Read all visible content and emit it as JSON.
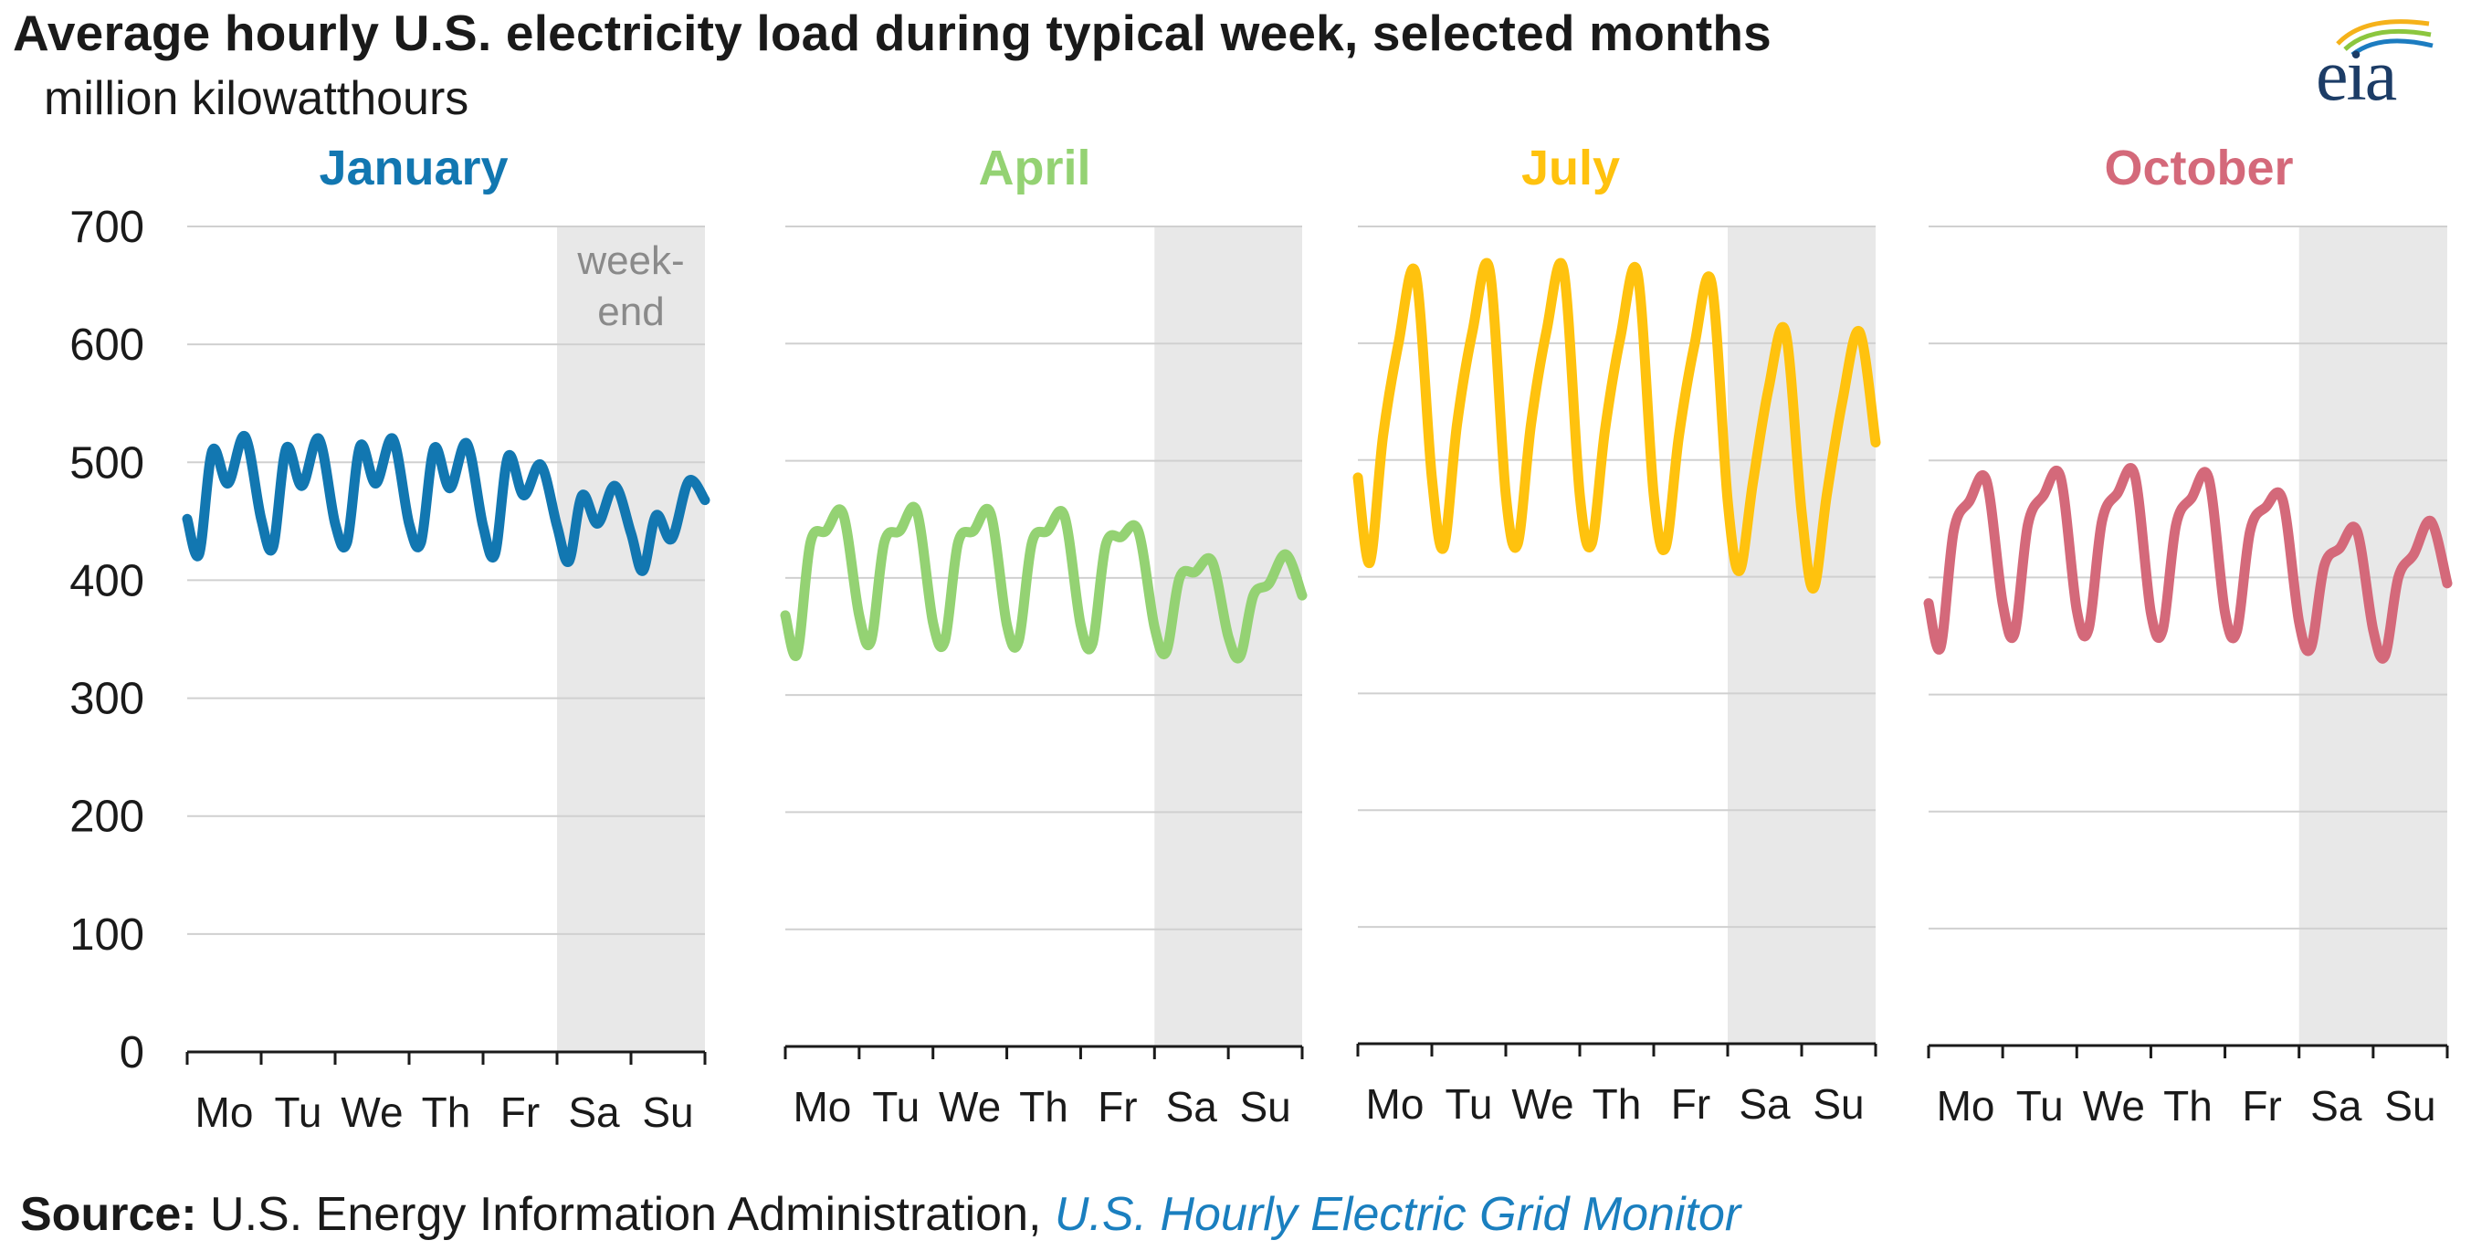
{
  "header": {
    "title": "Average hourly U.S. electricity load during typical week, selected months",
    "subtitle": "million kilowatthours",
    "logo_text": "eia"
  },
  "source": {
    "label": "Source:",
    "text": " U.S. Energy Information Administration, ",
    "link_text": "U.S. Hourly Electric Grid Monitor"
  },
  "chart_data": {
    "type": "line",
    "unit": "million kilowatthours",
    "y_ticks": [
      0,
      100,
      200,
      300,
      400,
      500,
      600,
      700
    ],
    "ylim": [
      0,
      700
    ],
    "x_ticks": [
      "Mo",
      "Tu",
      "We",
      "Th",
      "Fr",
      "Sa",
      "Su"
    ],
    "weekend_label": "week-\nend",
    "grid": true,
    "panels": [
      {
        "name": "January",
        "color": "#1277b1",
        "daily": [
          {
            "min": 422,
            "peak_am": 510,
            "mid": 482,
            "peak_pm": 522,
            "end": 452
          },
          {
            "min": 428,
            "peak_am": 512,
            "mid": 480,
            "peak_pm": 520,
            "end": 448
          },
          {
            "min": 432,
            "peak_am": 514,
            "mid": 482,
            "peak_pm": 520,
            "end": 448
          },
          {
            "min": 432,
            "peak_am": 512,
            "mid": 478,
            "peak_pm": 516,
            "end": 446
          },
          {
            "min": 422,
            "peak_am": 505,
            "mid": 472,
            "peak_pm": 498,
            "end": 446
          },
          {
            "min": 416,
            "peak_am": 472,
            "mid": 448,
            "peak_pm": 480,
            "end": 440
          },
          {
            "min": 408,
            "peak_am": 455,
            "mid": 435,
            "peak_pm": 484,
            "end": 468
          }
        ]
      },
      {
        "name": "April",
        "color": "#94d273",
        "daily": [
          {
            "min": 335,
            "peak_am": 430,
            "mid": 440,
            "peak_pm": 455,
            "end": 368
          },
          {
            "min": 346,
            "peak_am": 430,
            "mid": 440,
            "peak_pm": 457,
            "end": 362
          },
          {
            "min": 346,
            "peak_am": 430,
            "mid": 440,
            "peak_pm": 455,
            "end": 360
          },
          {
            "min": 346,
            "peak_am": 430,
            "mid": 440,
            "peak_pm": 453,
            "end": 360
          },
          {
            "min": 344,
            "peak_am": 428,
            "mid": 435,
            "peak_pm": 440,
            "end": 358
          },
          {
            "min": 337,
            "peak_am": 400,
            "mid": 405,
            "peak_pm": 414,
            "end": 350
          },
          {
            "min": 333,
            "peak_am": 385,
            "mid": 395,
            "peak_pm": 420,
            "end": 385
          }
        ]
      },
      {
        "name": "July",
        "color": "#ffc20e",
        "daily": [
          {
            "min": 412,
            "peak_am": 520,
            "mid": 600,
            "peak_pm": 660,
            "end": 485
          },
          {
            "min": 425,
            "peak_am": 530,
            "mid": 610,
            "peak_pm": 663,
            "end": 470
          },
          {
            "min": 428,
            "peak_am": 530,
            "mid": 610,
            "peak_pm": 663,
            "end": 470
          },
          {
            "min": 428,
            "peak_am": 525,
            "mid": 605,
            "peak_pm": 660,
            "end": 470
          },
          {
            "min": 425,
            "peak_am": 520,
            "mid": 598,
            "peak_pm": 652,
            "end": 465
          },
          {
            "min": 405,
            "peak_am": 480,
            "mid": 560,
            "peak_pm": 610,
            "end": 455
          },
          {
            "min": 390,
            "peak_am": 470,
            "mid": 550,
            "peak_pm": 610,
            "end": 515
          }
        ]
      },
      {
        "name": "October",
        "color": "#d4697a",
        "daily": [
          {
            "min": 340,
            "peak_am": 440,
            "mid": 465,
            "peak_pm": 483,
            "end": 378
          },
          {
            "min": 352,
            "peak_am": 445,
            "mid": 470,
            "peak_pm": 486,
            "end": 372
          },
          {
            "min": 356,
            "peak_am": 448,
            "mid": 472,
            "peak_pm": 488,
            "end": 370
          },
          {
            "min": 355,
            "peak_am": 445,
            "mid": 468,
            "peak_pm": 485,
            "end": 370
          },
          {
            "min": 354,
            "peak_am": 440,
            "mid": 460,
            "peak_pm": 466,
            "end": 362
          },
          {
            "min": 340,
            "peak_am": 410,
            "mid": 425,
            "peak_pm": 440,
            "end": 355
          },
          {
            "min": 333,
            "peak_am": 400,
            "mid": 420,
            "peak_pm": 448,
            "end": 395
          }
        ]
      }
    ]
  }
}
